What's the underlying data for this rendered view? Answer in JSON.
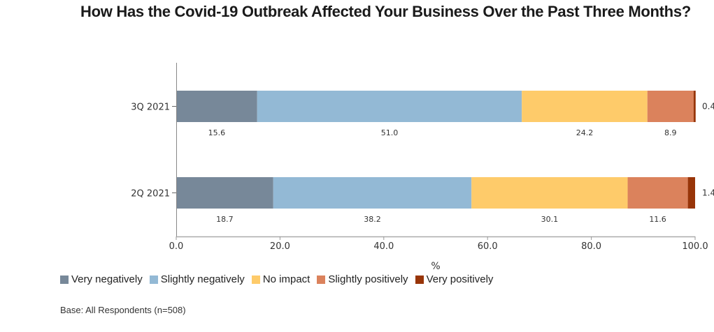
{
  "chart_data": {
    "type": "bar",
    "orientation": "horizontal",
    "stacked": true,
    "title": "How Has the Covid-19 Outbreak Affected Your Business Over the Past Three Months?",
    "xlabel": "%",
    "ylabel": "",
    "xlim": [
      0,
      100
    ],
    "x_ticks": [
      "0.0",
      "20.0",
      "40.0",
      "60.0",
      "80.0",
      "100.0"
    ],
    "x_tick_values": [
      0,
      20,
      40,
      60,
      80,
      100
    ],
    "categories": [
      "3Q 2021",
      "2Q 2021"
    ],
    "series": [
      {
        "name": "Very negatively",
        "color": "#778899",
        "values": [
          15.6,
          18.7
        ]
      },
      {
        "name": "Slightly negatively",
        "color": "#93B9D5",
        "values": [
          51.0,
          38.2
        ]
      },
      {
        "name": "No impact",
        "color": "#FECB6A",
        "values": [
          24.2,
          30.1
        ]
      },
      {
        "name": "Slightly positively",
        "color": "#DB825C",
        "values": [
          8.9,
          11.6
        ]
      },
      {
        "name": "Very positively",
        "color": "#983508",
        "values": [
          0.4,
          1.4
        ]
      }
    ],
    "grid": false,
    "legend_position": "bottom-left"
  },
  "footnote": "Base: All Respondents (n=508)"
}
